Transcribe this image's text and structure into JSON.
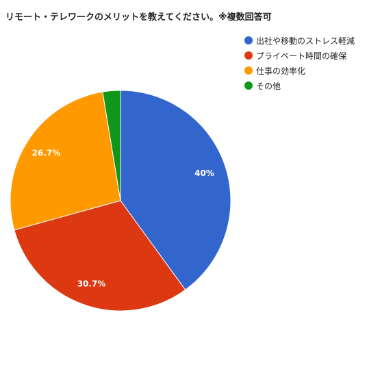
{
  "chart_data": {
    "type": "pie",
    "title": "リモート・テレワークのメリットを教えてください。※複数回答可",
    "categories": [
      "出社や移動のストレス軽減",
      "プライベート時間の確保",
      "仕事の効率化",
      "その他"
    ],
    "values": [
      40.0,
      30.7,
      26.7,
      2.6
    ],
    "data_labels": [
      "40%",
      "30.7%",
      "26.7%",
      ""
    ],
    "colors": [
      "#3366cc",
      "#dc3912",
      "#ff9900",
      "#109618"
    ],
    "legend_position": "top-right",
    "start_angle": "top, clockwise"
  }
}
